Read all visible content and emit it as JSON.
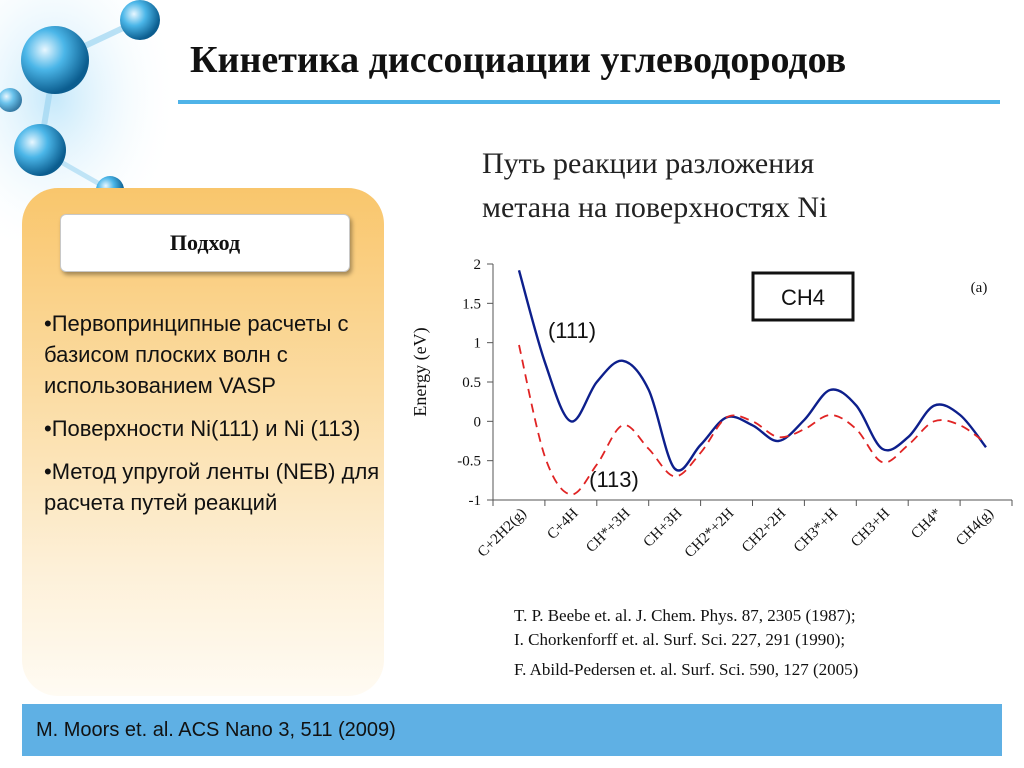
{
  "title": "Кинетика диссоциации углеводородов",
  "panel": {
    "header": "Подход",
    "bullets": [
      "•Первопринципные расчеты с базисом плоских волн с использованием VASP",
      "•Поверхности Ni(111) и Ni (113)",
      "•Метод упругой ленты (NEB) для расчета путей реакций"
    ]
  },
  "subtitle": [
    "Путь реакции разложения",
    "метана на поверхностях Ni"
  ],
  "references": [
    "T. P. Beebe et. al. J. Chem. Phys. 87, 2305 (1987);",
    "I. Chorkenforff et. al. Surf. Sci. 227, 291 (1990);",
    "F. Abild-Pedersen et. al. Surf. Sci. 590, 127 (2005)"
  ],
  "footer": "M. Moors et. al. ACS Nano 3, 511 (2009)",
  "chart_data": {
    "type": "line",
    "title": "",
    "xlabel": "",
    "ylabel": "Energy (eV)",
    "ylim": [
      -1,
      2
    ],
    "yticks": [
      "2",
      "1.5",
      "1",
      "0.5",
      "0",
      "-0.5",
      "-1"
    ],
    "categories": [
      "C+2H2(g)",
      "C+4H",
      "CH*+3H",
      "CH+3H",
      "CH2*+2H",
      "CH2+2H",
      "CH3*+H",
      "CH3+H",
      "CH4*",
      "CH4(g)"
    ],
    "series": [
      {
        "name": "(111)",
        "color": "#0d1f8c",
        "style": "solid",
        "points": [
          [
            0,
            1.92
          ],
          [
            0.5,
            0.75
          ],
          [
            1.0,
            0.0
          ],
          [
            1.5,
            0.5
          ],
          [
            2.0,
            0.77
          ],
          [
            2.5,
            0.4
          ],
          [
            3.0,
            -0.6
          ],
          [
            3.5,
            -0.3
          ],
          [
            4.0,
            0.05
          ],
          [
            4.5,
            -0.05
          ],
          [
            5.0,
            -0.25
          ],
          [
            5.5,
            0.02
          ],
          [
            6.0,
            0.4
          ],
          [
            6.5,
            0.2
          ],
          [
            7.0,
            -0.35
          ],
          [
            7.5,
            -0.2
          ],
          [
            8.0,
            0.2
          ],
          [
            8.5,
            0.08
          ],
          [
            9.0,
            -0.33
          ]
        ]
      },
      {
        "name": "(113)",
        "color": "#e02424",
        "style": "dashed",
        "points": [
          [
            0,
            0.97
          ],
          [
            0.5,
            -0.45
          ],
          [
            1.0,
            -0.93
          ],
          [
            1.5,
            -0.55
          ],
          [
            2.0,
            -0.05
          ],
          [
            2.5,
            -0.35
          ],
          [
            3.0,
            -0.7
          ],
          [
            3.5,
            -0.4
          ],
          [
            4.0,
            0.05
          ],
          [
            4.5,
            0.0
          ],
          [
            5.0,
            -0.2
          ],
          [
            5.5,
            -0.1
          ],
          [
            6.0,
            0.08
          ],
          [
            6.5,
            -0.1
          ],
          [
            7.0,
            -0.52
          ],
          [
            7.5,
            -0.3
          ],
          [
            8.0,
            0.0
          ],
          [
            8.5,
            -0.05
          ],
          [
            9.0,
            -0.28
          ]
        ]
      }
    ],
    "box_label": "CH4",
    "panel_label": "(a)",
    "series_labels": [
      "(111)",
      "(113)"
    ]
  }
}
